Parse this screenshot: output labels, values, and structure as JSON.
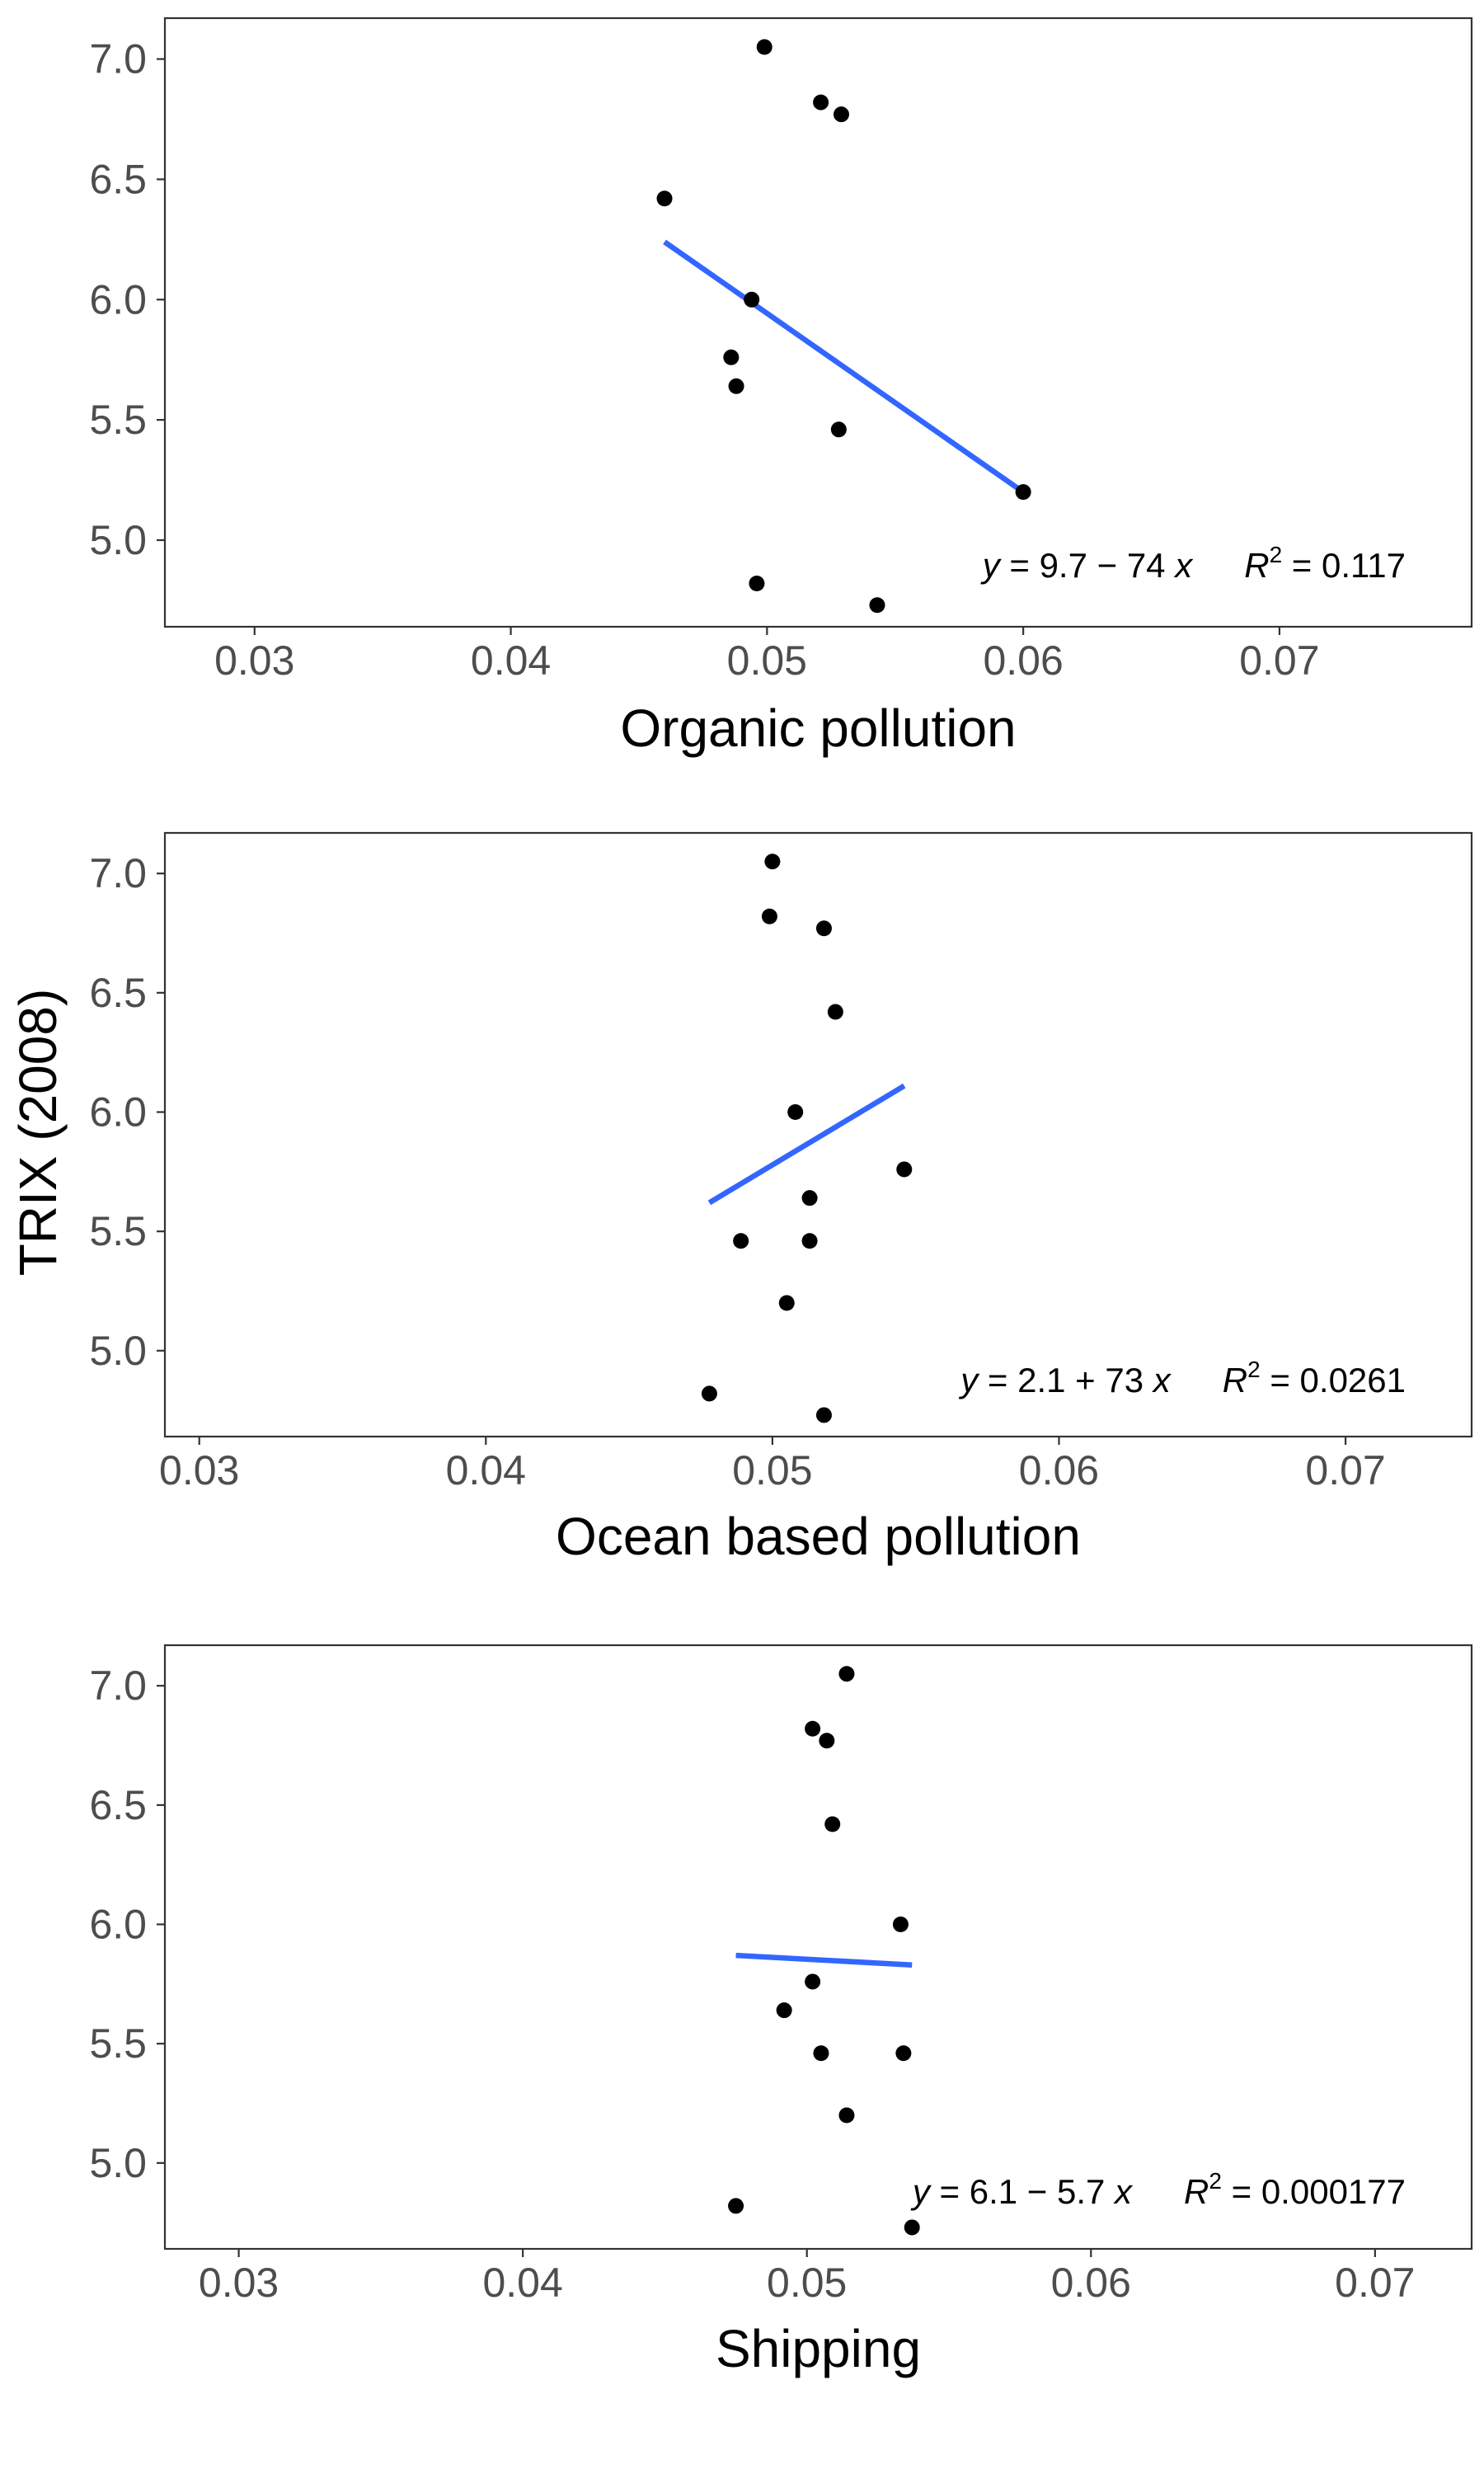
{
  "figure": {
    "ylabel": "TRIX (2008)"
  },
  "colors": {
    "points": "#000000",
    "fit_line": "#3366ff",
    "panel_border": "#333333",
    "tick_label": "#4d4d4d",
    "tick_mark": "#333333"
  },
  "chart_data": [
    {
      "type": "scatter",
      "xlabel": "Organic pollution",
      "xlim": [
        0.0265,
        0.0775
      ],
      "ylim": [
        4.64,
        7.17
      ],
      "x_ticks": [
        "0.03",
        "0.04",
        "0.05",
        "0.06",
        "0.07"
      ],
      "y_ticks": [
        "5.0",
        "5.5",
        "6.0",
        "6.5",
        "7.0"
      ],
      "grid": false,
      "points": [
        {
          "x": 0.0499,
          "y": 7.05
        },
        {
          "x": 0.0521,
          "y": 6.82
        },
        {
          "x": 0.0529,
          "y": 6.77
        },
        {
          "x": 0.046,
          "y": 6.42
        },
        {
          "x": 0.0494,
          "y": 6.0
        },
        {
          "x": 0.0486,
          "y": 5.76
        },
        {
          "x": 0.0488,
          "y": 5.64
        },
        {
          "x": 0.0528,
          "y": 5.46
        },
        {
          "x": 0.06,
          "y": 5.2
        },
        {
          "x": 0.0496,
          "y": 4.82
        },
        {
          "x": 0.0543,
          "y": 4.73
        }
      ],
      "fit_line": {
        "x1": 0.046,
        "y1": 6.24,
        "x2": 0.06,
        "y2": 5.2
      },
      "equation": {
        "y_var": "y",
        "body": " = 9.7 − 74 ",
        "x_var": "x",
        "r_var": "R",
        "r_sup": "2",
        "r_val": " = 0.117"
      }
    },
    {
      "type": "scatter",
      "xlabel": "Ocean based pollution",
      "xlim": [
        0.0288,
        0.0744
      ],
      "ylim": [
        4.64,
        7.17
      ],
      "x_ticks": [
        "0.03",
        "0.04",
        "0.05",
        "0.06",
        "0.07"
      ],
      "y_ticks": [
        "5.0",
        "5.5",
        "6.0",
        "6.5",
        "7.0"
      ],
      "grid": false,
      "points": [
        {
          "x": 0.05,
          "y": 7.05
        },
        {
          "x": 0.0499,
          "y": 6.82
        },
        {
          "x": 0.0518,
          "y": 6.77
        },
        {
          "x": 0.0522,
          "y": 6.42
        },
        {
          "x": 0.0508,
          "y": 6.0
        },
        {
          "x": 0.0546,
          "y": 5.76
        },
        {
          "x": 0.0513,
          "y": 5.64
        },
        {
          "x": 0.0489,
          "y": 5.46
        },
        {
          "x": 0.0513,
          "y": 5.46
        },
        {
          "x": 0.0505,
          "y": 5.2
        },
        {
          "x": 0.0478,
          "y": 4.82
        },
        {
          "x": 0.0518,
          "y": 4.73
        }
      ],
      "fit_line": {
        "x1": 0.0478,
        "y1": 5.62,
        "x2": 0.0546,
        "y2": 6.11
      },
      "equation": {
        "y_var": "y",
        "body": " = 2.1 + 73 ",
        "x_var": "x",
        "r_var": "R",
        "r_sup": "2",
        "r_val": " = 0.0261"
      }
    },
    {
      "type": "scatter",
      "xlabel": "Shipping",
      "xlim": [
        0.0274,
        0.0734
      ],
      "ylim": [
        4.64,
        7.17
      ],
      "x_ticks": [
        "0.03",
        "0.04",
        "0.05",
        "0.06",
        "0.07"
      ],
      "y_ticks": [
        "5.0",
        "5.5",
        "6.0",
        "6.5",
        "7.0"
      ],
      "grid": false,
      "points": [
        {
          "x": 0.0514,
          "y": 7.05
        },
        {
          "x": 0.0502,
          "y": 6.82
        },
        {
          "x": 0.0507,
          "y": 6.77
        },
        {
          "x": 0.0509,
          "y": 6.42
        },
        {
          "x": 0.0533,
          "y": 6.0
        },
        {
          "x": 0.0502,
          "y": 5.76
        },
        {
          "x": 0.0492,
          "y": 5.64
        },
        {
          "x": 0.0505,
          "y": 5.46
        },
        {
          "x": 0.0534,
          "y": 5.46
        },
        {
          "x": 0.0514,
          "y": 5.2
        },
        {
          "x": 0.0475,
          "y": 4.82
        },
        {
          "x": 0.0537,
          "y": 4.73
        }
      ],
      "fit_line": {
        "x1": 0.0475,
        "y1": 5.87,
        "x2": 0.0537,
        "y2": 5.83
      },
      "equation": {
        "y_var": "y",
        "body": " = 6.1 − 5.7 ",
        "x_var": "x",
        "r_var": "R",
        "r_sup": "2",
        "r_val": " = 0.000177"
      }
    }
  ]
}
